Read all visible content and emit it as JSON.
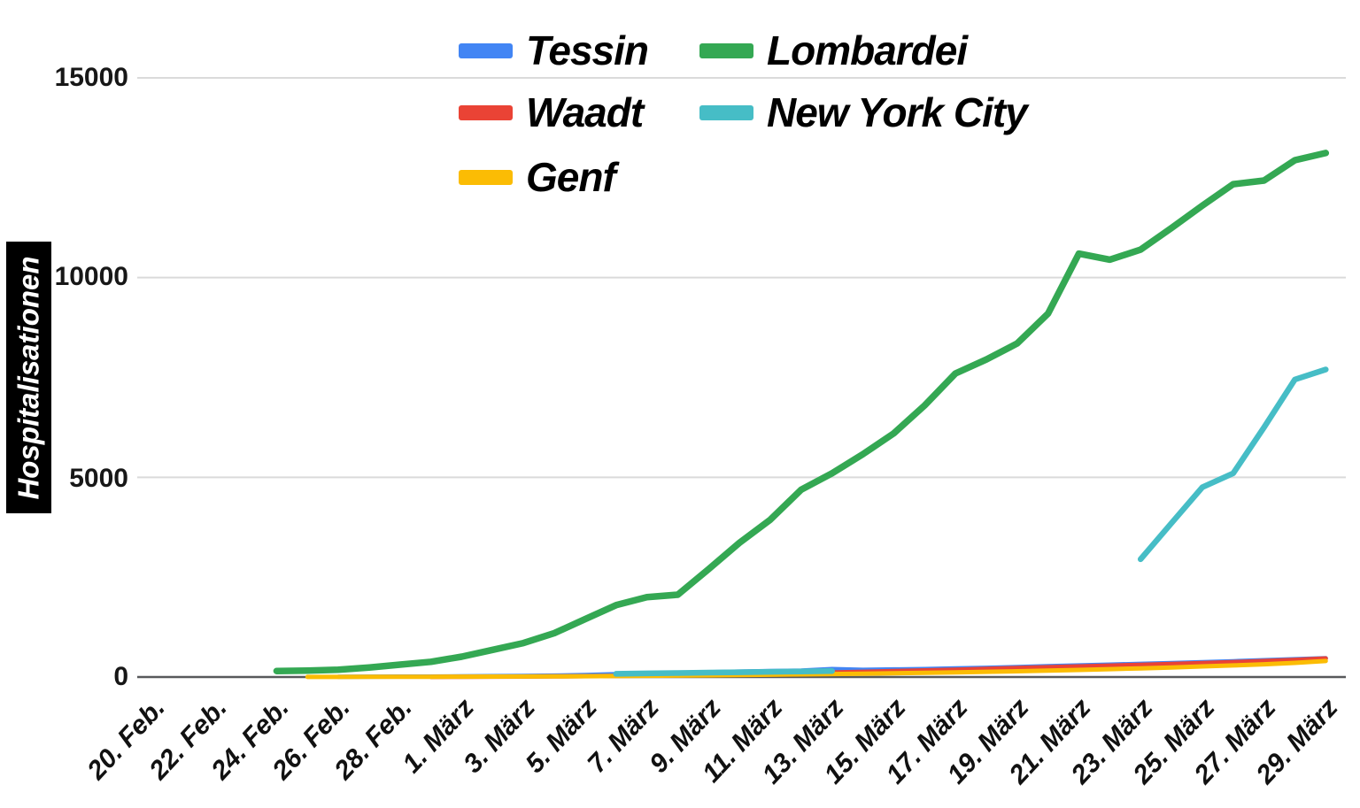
{
  "y_axis": {
    "title": "Hospitalisationen",
    "ticks": [
      "15000",
      "10000",
      "5000",
      "0"
    ],
    "tick_values": [
      15000,
      10000,
      5000,
      0
    ]
  },
  "x_axis": {
    "tick_labels": [
      "20. Feb.",
      "22. Feb.",
      "24. Feb.",
      "26. Feb.",
      "28. Feb.",
      "1. März",
      "3. März",
      "5. März",
      "7. März",
      "9. März",
      "11. März",
      "13. März",
      "15. März",
      "17. März",
      "19. März",
      "21. März",
      "23. März",
      "25. März",
      "27. März",
      "29. März"
    ]
  },
  "legend": {
    "items": [
      {
        "label": "Tessin",
        "color": "#4285F4"
      },
      {
        "label": "Lombardei",
        "color": "#34A853"
      },
      {
        "label": "Waadt",
        "color": "#EA4335"
      },
      {
        "label": "New York City",
        "color": "#46BDC6"
      },
      {
        "label": "Genf",
        "color": "#FBBC04"
      }
    ]
  },
  "chart_data": {
    "type": "line",
    "title": "",
    "xlabel": "",
    "ylabel": "Hospitalisationen",
    "ylim": [
      0,
      15000
    ],
    "grid": "horizontal",
    "legend_position": "top",
    "x": [
      "20. Feb.",
      "21. Feb.",
      "22. Feb.",
      "23. Feb.",
      "24. Feb.",
      "25. Feb.",
      "26. Feb.",
      "27. Feb.",
      "28. Feb.",
      "29. Feb.",
      "1. März",
      "2. März",
      "3. März",
      "4. März",
      "5. März",
      "6. März",
      "7. März",
      "8. März",
      "9. März",
      "10. März",
      "11. März",
      "12. März",
      "13. März",
      "14. März",
      "15. März",
      "16. März",
      "17. März",
      "18. März",
      "19. März",
      "20. März",
      "21. März",
      "22. März",
      "23. März",
      "24. März",
      "25. März",
      "26. März",
      "27. März",
      "28. März",
      "29. März"
    ],
    "series": [
      {
        "name": "Tessin",
        "color": "#4285F4",
        "stroke_width": 5,
        "values": [
          null,
          null,
          null,
          null,
          null,
          null,
          5,
          8,
          10,
          12,
          16,
          22,
          28,
          36,
          50,
          70,
          90,
          105,
          120,
          135,
          150,
          160,
          200,
          180,
          190,
          200,
          215,
          230,
          250,
          270,
          290,
          310,
          330,
          350,
          370,
          395,
          420,
          445,
          470
        ]
      },
      {
        "name": "Waadt",
        "color": "#EA4335",
        "stroke_width": 5,
        "values": [
          null,
          null,
          null,
          null,
          null,
          null,
          null,
          null,
          null,
          3,
          6,
          9,
          12,
          16,
          22,
          28,
          35,
          44,
          55,
          68,
          82,
          98,
          114,
          130,
          148,
          166,
          185,
          205,
          225,
          245,
          265,
          285,
          305,
          325,
          350,
          375,
          400,
          430,
          465
        ]
      },
      {
        "name": "Genf",
        "color": "#FBBC04",
        "stroke_width": 5,
        "values": [
          null,
          null,
          null,
          null,
          null,
          2,
          3,
          4,
          5,
          6,
          8,
          10,
          13,
          16,
          20,
          25,
          30,
          36,
          42,
          50,
          58,
          66,
          75,
          85,
          95,
          105,
          118,
          130,
          145,
          160,
          178,
          198,
          218,
          240,
          265,
          290,
          320,
          355,
          400
        ]
      },
      {
        "name": "Lombardei",
        "color": "#34A853",
        "stroke_width": 7.5,
        "values": [
          null,
          null,
          null,
          null,
          150,
          160,
          185,
          240,
          310,
          380,
          510,
          680,
          850,
          1100,
          1450,
          1800,
          2000,
          2060,
          2700,
          3360,
          3940,
          4690,
          5100,
          5580,
          6100,
          6800,
          7600,
          7950,
          8350,
          9100,
          10600,
          10450,
          10700,
          11240,
          11800,
          12340,
          12430,
          12940,
          13120
        ]
      },
      {
        "name": "New York City",
        "color": "#46BDC6",
        "stroke_width": 6.5,
        "values": [
          null,
          null,
          null,
          null,
          null,
          null,
          null,
          null,
          null,
          null,
          null,
          null,
          null,
          null,
          null,
          80,
          90,
          100,
          110,
          120,
          130,
          140,
          150,
          null,
          null,
          null,
          null,
          null,
          null,
          null,
          null,
          null,
          2950,
          3850,
          4750,
          5100,
          6250,
          7450,
          7700
        ]
      }
    ]
  }
}
